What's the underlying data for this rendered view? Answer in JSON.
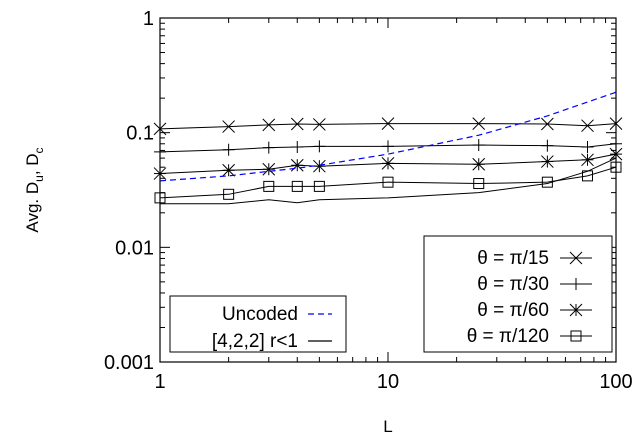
{
  "chart_data": {
    "type": "line",
    "title": "",
    "xlabel": "L",
    "ylabel_main": "Avg. D",
    "ylabel_sub1": "u",
    "ylabel_sep": ", D",
    "ylabel_sub2": "c",
    "xscale": "log",
    "yscale": "log",
    "xlim": [
      1,
      100
    ],
    "ylim": [
      0.001,
      1
    ],
    "grid": false,
    "x_ticks": [
      {
        "value": 1,
        "label": "1"
      },
      {
        "value": 10,
        "label": "10"
      },
      {
        "value": 100,
        "label": "100"
      }
    ],
    "y_ticks": [
      {
        "value": 1,
        "label": "1"
      },
      {
        "value": 0.1,
        "label": "0.1"
      },
      {
        "value": 0.01,
        "label": "0.01"
      },
      {
        "value": 0.001,
        "label": "0.001"
      }
    ],
    "legend_left": {
      "placement": "bottom-left",
      "entries": [
        {
          "label": "Uncoded",
          "style": "dashed",
          "color": "#0000ff"
        },
        {
          "label": "[4,2,2] r<1",
          "style": "solid",
          "color": "#000000"
        }
      ]
    },
    "legend_right": {
      "placement": "bottom-right",
      "entries": [
        {
          "label": "θ = π/15",
          "marker": "x"
        },
        {
          "label": "θ = π/30",
          "marker": "+"
        },
        {
          "label": "θ = π/60",
          "marker": "star"
        },
        {
          "label": "θ = π/120",
          "marker": "square"
        }
      ]
    },
    "uncoded_series": {
      "name": "Uncoded",
      "color": "#0000ff",
      "x": [
        1,
        2,
        3,
        4,
        5,
        10,
        25,
        50,
        75,
        100
      ],
      "y": [
        0.038,
        0.042,
        0.046,
        0.049,
        0.052,
        0.065,
        0.095,
        0.14,
        0.185,
        0.225
      ]
    },
    "series": [
      {
        "name": "θ = π/15",
        "marker": "x",
        "x": [
          1,
          2,
          3,
          4,
          5,
          10,
          25,
          50,
          75,
          100
        ],
        "y": [
          0.108,
          0.113,
          0.117,
          0.119,
          0.118,
          0.12,
          0.12,
          0.119,
          0.115,
          0.12
        ]
      },
      {
        "name": "θ = π/30",
        "marker": "+",
        "x": [
          1,
          2,
          3,
          4,
          5,
          10,
          25,
          50,
          75,
          100
        ],
        "y": [
          0.068,
          0.071,
          0.074,
          0.075,
          0.076,
          0.076,
          0.078,
          0.077,
          0.075,
          0.08
        ]
      },
      {
        "name": "θ = π/60",
        "marker": "star",
        "x": [
          1,
          2,
          3,
          4,
          5,
          10,
          25,
          50,
          75,
          100
        ],
        "y": [
          0.044,
          0.047,
          0.048,
          0.052,
          0.051,
          0.054,
          0.053,
          0.056,
          0.058,
          0.065
        ]
      },
      {
        "name": "θ = π/120",
        "marker": "square",
        "x": [
          1,
          2,
          3,
          4,
          5,
          10,
          25,
          50,
          75,
          100
        ],
        "y": [
          0.027,
          0.029,
          0.034,
          0.034,
          0.034,
          0.037,
          0.036,
          0.037,
          0.042,
          0.05
        ]
      }
    ],
    "unmarked_series": [
      {
        "x": [
          1,
          2,
          3,
          4,
          5,
          10,
          25,
          50,
          75,
          100
        ],
        "y": [
          0.024,
          0.024,
          0.026,
          0.0245,
          0.026,
          0.027,
          0.03,
          0.036,
          0.046,
          0.06
        ]
      }
    ]
  }
}
